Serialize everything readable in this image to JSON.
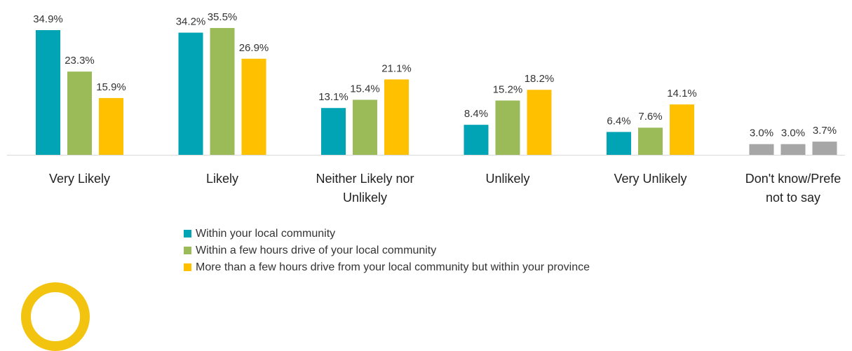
{
  "chart_data": {
    "type": "bar",
    "categories": [
      "Very Likely",
      "Likely",
      "Neither Likely nor Unlikely",
      "Unlikely",
      "Very Unlikely",
      "Don't know/Prefer not to say"
    ],
    "category_lines": [
      [
        "Very Likely"
      ],
      [
        "Likely"
      ],
      [
        "Neither Likely nor",
        "Unlikely"
      ],
      [
        "Unlikely"
      ],
      [
        "Very Unlikely"
      ],
      [
        "Don't know/Prefe",
        "not to say"
      ]
    ],
    "series": [
      {
        "name": "Within your local community",
        "color": "#00a4b4",
        "values": [
          34.9,
          34.2,
          13.1,
          8.4,
          6.4,
          3.0
        ]
      },
      {
        "name": "Within a few hours drive of your local community",
        "color": "#9bbb59",
        "values": [
          23.3,
          35.5,
          15.4,
          15.2,
          7.6,
          3.0
        ]
      },
      {
        "name": "More than a few hours drive from your local community but within your province",
        "color": "#ffc000",
        "values": [
          15.9,
          26.9,
          21.1,
          18.2,
          14.1,
          3.7
        ]
      }
    ],
    "other_color": "#a6a6a6",
    "value_labels": [
      [
        "34.9%",
        "23.3%",
        "15.9%"
      ],
      [
        "34.2%",
        "35.5%",
        "26.9%"
      ],
      [
        "13.1%",
        "15.4%",
        "21.1%"
      ],
      [
        "8.4%",
        "15.2%",
        "18.2%"
      ],
      [
        "6.4%",
        "7.6%",
        "14.1%"
      ],
      [
        "3.0%",
        "3.0%",
        "3.7%"
      ]
    ],
    "ylim": [
      0,
      36
    ],
    "grid": false,
    "legend_position": "bottom"
  },
  "legend": {
    "items": [
      {
        "label": "Within your local community",
        "color": "#00a4b4"
      },
      {
        "label": "Within a few hours drive of your local community",
        "color": "#9bbb59"
      },
      {
        "label": "More than a few hours drive from your local community but within your province",
        "color": "#ffc000"
      }
    ]
  }
}
